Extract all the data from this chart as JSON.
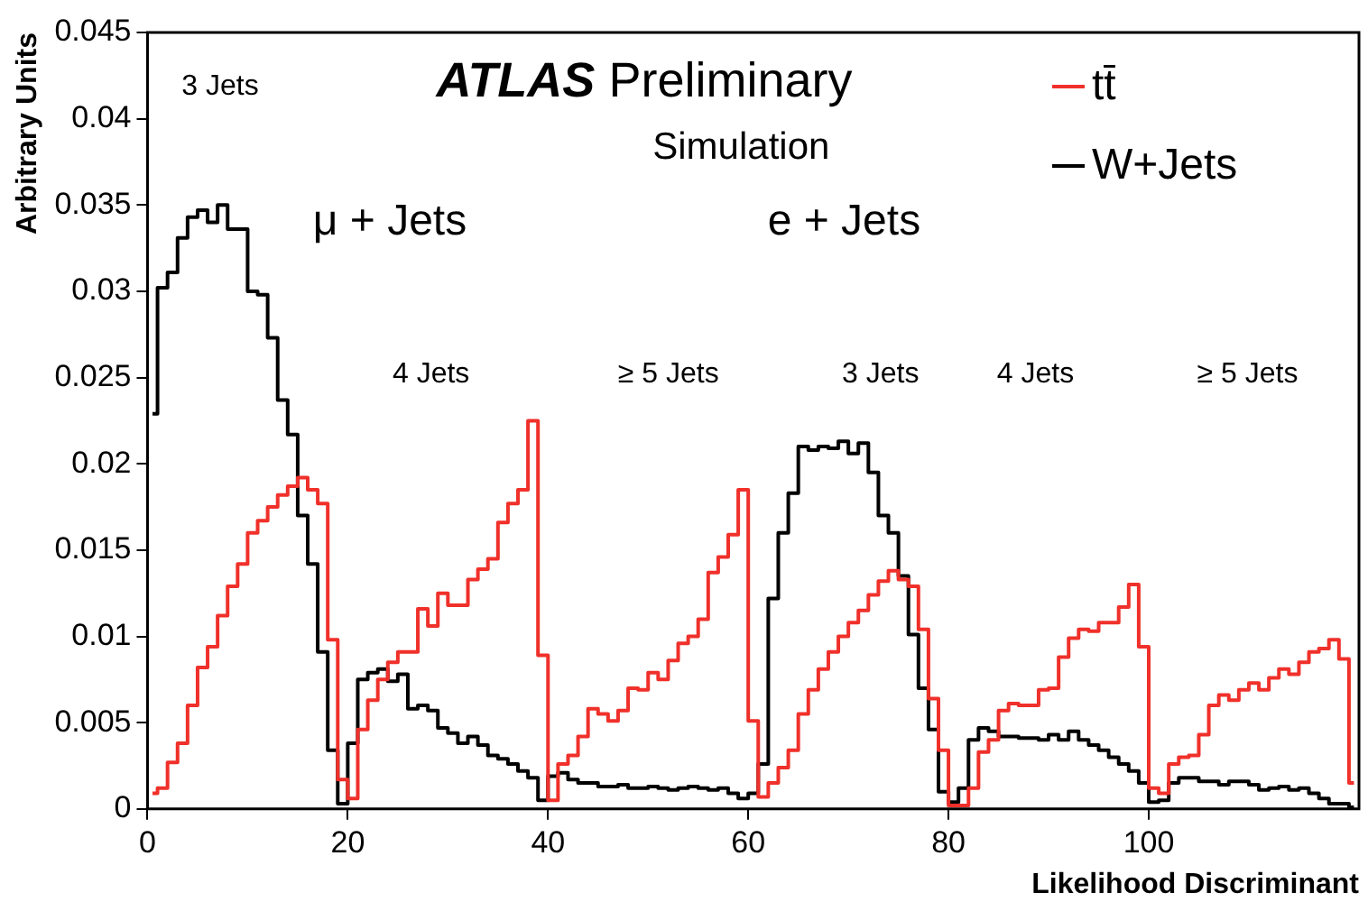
{
  "chart_data": {
    "type": "step",
    "title": "ATLAS Preliminary",
    "subtitle": "Simulation",
    "xlabel": "Likelihood Discriminant",
    "ylabel": "Arbitrary Units",
    "x": [
      0.5,
      1.5,
      2.5,
      3.5,
      4.5,
      5.5,
      6.5,
      7.5,
      8.5,
      9.5,
      10.5,
      11.5,
      12.5,
      13.5,
      14.5,
      15.5,
      16.5,
      17.5,
      18.5,
      19.5,
      20.5,
      21.5,
      22.5,
      23.5,
      24.5,
      25.5,
      26.5,
      27.5,
      28.5,
      29.5,
      30.5,
      31.5,
      32.5,
      33.5,
      34.5,
      35.5,
      36.5,
      37.5,
      38.5,
      39.5,
      40.5,
      41.5,
      42.5,
      43.5,
      44.5,
      45.5,
      46.5,
      47.5,
      48.5,
      49.5,
      50.5,
      51.5,
      52.5,
      53.5,
      54.5,
      55.5,
      56.5,
      57.5,
      58.5,
      59.5,
      60.5,
      61.5,
      62.5,
      63.5,
      64.5,
      65.5,
      66.5,
      67.5,
      68.5,
      69.5,
      70.5,
      71.5,
      72.5,
      73.5,
      74.5,
      75.5,
      76.5,
      77.5,
      78.5,
      79.5,
      80.5,
      81.5,
      82.5,
      83.5,
      84.5,
      85.5,
      86.5,
      87.5,
      88.5,
      89.5,
      90.5,
      91.5,
      92.5,
      93.5,
      94.5,
      95.5,
      96.5,
      97.5,
      98.5,
      99.5,
      100.5,
      101.5,
      102.5,
      103.5,
      104.5,
      105.5,
      106.5,
      107.5,
      108.5,
      109.5,
      110.5,
      111.5,
      112.5,
      113.5,
      114.5,
      115.5,
      116.5,
      117.5,
      118.5,
      119.5,
      120.5
    ],
    "series": [
      {
        "name": "tt̄",
        "color": "#f0302a",
        "values": [
          0.0009,
          0.0012,
          0.0027,
          0.0038,
          0.006,
          0.0082,
          0.0094,
          0.0112,
          0.0129,
          0.0142,
          0.016,
          0.0167,
          0.0175,
          0.0182,
          0.0187,
          0.0192,
          0.0185,
          0.0177,
          0.0098,
          0.0017,
          0.0006,
          0.0046,
          0.0063,
          0.0075,
          0.0085,
          0.0091,
          0.0091,
          0.0116,
          0.0106,
          0.0125,
          0.0118,
          0.0118,
          0.0133,
          0.0139,
          0.0145,
          0.0166,
          0.0177,
          0.0185,
          0.0225,
          0.0089,
          0.0005,
          0.0026,
          0.0031,
          0.0042,
          0.0058,
          0.0055,
          0.0051,
          0.0057,
          0.007,
          0.0069,
          0.0079,
          0.0075,
          0.0086,
          0.0096,
          0.01,
          0.011,
          0.0137,
          0.0146,
          0.0159,
          0.0185,
          0.0051,
          0.0007,
          0.0015,
          0.0024,
          0.0034,
          0.0055,
          0.0069,
          0.0081,
          0.0091,
          0.01,
          0.0108,
          0.0115,
          0.0124,
          0.0132,
          0.0138,
          0.0133,
          0.0129,
          0.0104,
          0.0064,
          0.0034,
          0.0002,
          0.0002,
          0.0012,
          0.0033,
          0.004,
          0.0057,
          0.0061,
          0.006,
          0.006,
          0.0069,
          0.007,
          0.0088,
          0.0099,
          0.0104,
          0.0103,
          0.0108,
          0.0108,
          0.0117,
          0.013,
          0.0094,
          0.0012,
          0.0009,
          0.0026,
          0.003,
          0.0031,
          0.0043,
          0.006,
          0.0066,
          0.0063,
          0.0069,
          0.0073,
          0.0069,
          0.0076,
          0.0081,
          0.0078,
          0.0085,
          0.0091,
          0.0093,
          0.0098,
          0.0087,
          0.0015
        ]
      },
      {
        "name": "W+Jets",
        "color": "#000000",
        "values": [
          0.0229,
          0.0302,
          0.0311,
          0.0331,
          0.0343,
          0.0347,
          0.034,
          0.035,
          0.0336,
          0.0336,
          0.03,
          0.0298,
          0.0273,
          0.0237,
          0.0217,
          0.017,
          0.0142,
          0.0091,
          0.0034,
          0.0003,
          0.0038,
          0.0075,
          0.0079,
          0.0081,
          0.0074,
          0.0078,
          0.0058,
          0.006,
          0.0057,
          0.0047,
          0.0044,
          0.0038,
          0.0042,
          0.0037,
          0.0031,
          0.0029,
          0.0026,
          0.0022,
          0.0018,
          0.0005,
          0.0019,
          0.0021,
          0.0017,
          0.0015,
          0.0015,
          0.0013,
          0.0013,
          0.0014,
          0.0012,
          0.0012,
          0.0013,
          0.0012,
          0.0011,
          0.0012,
          0.0013,
          0.0012,
          0.0011,
          0.0012,
          0.0009,
          0.0006,
          0.0009,
          0.0026,
          0.0122,
          0.016,
          0.0183,
          0.021,
          0.0208,
          0.021,
          0.0209,
          0.0213,
          0.0206,
          0.0212,
          0.0195,
          0.017,
          0.016,
          0.0135,
          0.0101,
          0.007,
          0.0046,
          0.001,
          0.0004,
          0.0012,
          0.004,
          0.0047,
          0.0045,
          0.0042,
          0.0042,
          0.0041,
          0.0041,
          0.004,
          0.0043,
          0.004,
          0.0045,
          0.004,
          0.0037,
          0.0034,
          0.003,
          0.0026,
          0.0022,
          0.0015,
          0.0004,
          0.0005,
          0.0015,
          0.0018,
          0.0018,
          0.0016,
          0.0016,
          0.0014,
          0.0016,
          0.0016,
          0.0014,
          0.0011,
          0.0012,
          0.0013,
          0.0011,
          0.0012,
          0.0009,
          0.0006,
          0.0003,
          0.0003,
          0.0001
        ]
      }
    ],
    "xlim": [
      0,
      121
    ],
    "xticks": [
      0,
      20,
      40,
      60,
      80,
      100
    ],
    "ylim": [
      0,
      0.045
    ],
    "yticks": [
      0,
      0.005,
      0.01,
      0.015,
      0.02,
      0.025,
      0.03,
      0.035,
      0.04,
      0.045
    ],
    "legend": "top right",
    "annotations": [
      "3 Jets",
      "μ + Jets",
      "e + Jets",
      "4 Jets",
      "≥ 5 Jets",
      "3 Jets",
      "4 Jets",
      "≥ 5 Jets"
    ]
  }
}
